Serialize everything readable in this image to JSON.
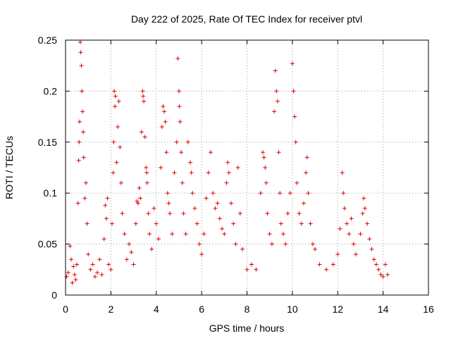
{
  "chart_data": {
    "type": "scatter",
    "title": "Day 222 of 2025, Rate Of TEC Index for receiver ptvl",
    "xlabel": "GPS time / hours",
    "ylabel": "ROTI / TECUs",
    "xlim": [
      0,
      16
    ],
    "ylim": [
      0,
      0.25
    ],
    "x_ticks": [
      0,
      2,
      4,
      6,
      8,
      10,
      12,
      14,
      16
    ],
    "x_tick_labels": [
      "0",
      "2",
      "4",
      "6",
      "8",
      "10",
      "12",
      "14",
      "16"
    ],
    "y_ticks": [
      0,
      0.05,
      0.1,
      0.15,
      0.2,
      0.25
    ],
    "y_tick_labels": [
      "0",
      "0.05",
      "0.1",
      "0.15",
      "0.2",
      "0.25"
    ],
    "grid": true,
    "marker": "+",
    "series": [
      {
        "name": "ROTI",
        "color": "#e00000",
        "points": [
          [
            0.05,
            0.018
          ],
          [
            0.12,
            0.022
          ],
          [
            0.2,
            0.048
          ],
          [
            0.25,
            0.035
          ],
          [
            0.3,
            0.012
          ],
          [
            0.35,
            0.028
          ],
          [
            0.4,
            0.02
          ],
          [
            0.45,
            0.015
          ],
          [
            0.5,
            0.03
          ],
          [
            0.55,
            0.09
          ],
          [
            0.58,
            0.132
          ],
          [
            0.6,
            0.15
          ],
          [
            0.62,
            0.17
          ],
          [
            0.65,
            0.248
          ],
          [
            0.67,
            0.238
          ],
          [
            0.7,
            0.225
          ],
          [
            0.72,
            0.2
          ],
          [
            0.75,
            0.18
          ],
          [
            0.78,
            0.16
          ],
          [
            0.8,
            0.135
          ],
          [
            0.85,
            0.095
          ],
          [
            0.9,
            0.11
          ],
          [
            0.95,
            0.07
          ],
          [
            1.0,
            0.04
          ],
          [
            1.1,
            0.025
          ],
          [
            1.2,
            0.03
          ],
          [
            1.3,
            0.018
          ],
          [
            1.4,
            0.022
          ],
          [
            1.5,
            0.035
          ],
          [
            1.6,
            0.02
          ],
          [
            1.7,
            0.055
          ],
          [
            1.75,
            0.088
          ],
          [
            1.8,
            0.075
          ],
          [
            1.85,
            0.095
          ],
          [
            1.9,
            0.03
          ],
          [
            2.0,
            0.025
          ],
          [
            2.05,
            0.07
          ],
          [
            2.1,
            0.12
          ],
          [
            2.12,
            0.15
          ],
          [
            2.15,
            0.2
          ],
          [
            2.18,
            0.185
          ],
          [
            2.2,
            0.195
          ],
          [
            2.25,
            0.13
          ],
          [
            2.3,
            0.165
          ],
          [
            2.35,
            0.19
          ],
          [
            2.4,
            0.145
          ],
          [
            2.45,
            0.11
          ],
          [
            2.5,
            0.08
          ],
          [
            2.6,
            0.06
          ],
          [
            2.7,
            0.035
          ],
          [
            2.8,
            0.05
          ],
          [
            2.9,
            0.042
          ],
          [
            3.0,
            0.03
          ],
          [
            3.1,
            0.07
          ],
          [
            3.15,
            0.092
          ],
          [
            3.2,
            0.09
          ],
          [
            3.25,
            0.105
          ],
          [
            3.3,
            0.095
          ],
          [
            3.35,
            0.16
          ],
          [
            3.4,
            0.2
          ],
          [
            3.42,
            0.195
          ],
          [
            3.45,
            0.19
          ],
          [
            3.5,
            0.155
          ],
          [
            3.55,
            0.125
          ],
          [
            3.58,
            0.12
          ],
          [
            3.6,
            0.11
          ],
          [
            3.65,
            0.08
          ],
          [
            3.7,
            0.06
          ],
          [
            3.8,
            0.045
          ],
          [
            3.9,
            0.085
          ],
          [
            4.0,
            0.07
          ],
          [
            4.1,
            0.055
          ],
          [
            4.2,
            0.125
          ],
          [
            4.25,
            0.165
          ],
          [
            4.3,
            0.185
          ],
          [
            4.35,
            0.18
          ],
          [
            4.4,
            0.17
          ],
          [
            4.45,
            0.14
          ],
          [
            4.5,
            0.1
          ],
          [
            4.55,
            0.09
          ],
          [
            4.6,
            0.08
          ],
          [
            4.7,
            0.06
          ],
          [
            4.8,
            0.12
          ],
          [
            4.9,
            0.15
          ],
          [
            4.95,
            0.232
          ],
          [
            5.0,
            0.2
          ],
          [
            5.02,
            0.185
          ],
          [
            5.05,
            0.17
          ],
          [
            5.1,
            0.14
          ],
          [
            5.15,
            0.11
          ],
          [
            5.2,
            0.08
          ],
          [
            5.3,
            0.06
          ],
          [
            5.4,
            0.15
          ],
          [
            5.5,
            0.13
          ],
          [
            5.55,
            0.12
          ],
          [
            5.6,
            0.1
          ],
          [
            5.7,
            0.085
          ],
          [
            5.8,
            0.07
          ],
          [
            5.9,
            0.05
          ],
          [
            6.0,
            0.04
          ],
          [
            6.1,
            0.06
          ],
          [
            6.2,
            0.095
          ],
          [
            6.3,
            0.12
          ],
          [
            6.4,
            0.14
          ],
          [
            6.5,
            0.1
          ],
          [
            6.6,
            0.085
          ],
          [
            6.7,
            0.09
          ],
          [
            6.8,
            0.075
          ],
          [
            6.9,
            0.065
          ],
          [
            7.0,
            0.06
          ],
          [
            7.1,
            0.11
          ],
          [
            7.15,
            0.13
          ],
          [
            7.2,
            0.12
          ],
          [
            7.3,
            0.09
          ],
          [
            7.4,
            0.07
          ],
          [
            7.5,
            0.05
          ],
          [
            7.6,
            0.125
          ],
          [
            7.7,
            0.08
          ],
          [
            7.8,
            0.045
          ],
          [
            8.0,
            0.025
          ],
          [
            8.2,
            0.03
          ],
          [
            8.4,
            0.025
          ],
          [
            8.6,
            0.1
          ],
          [
            8.7,
            0.14
          ],
          [
            8.75,
            0.135
          ],
          [
            8.8,
            0.125
          ],
          [
            8.85,
            0.11
          ],
          [
            8.9,
            0.08
          ],
          [
            9.0,
            0.06
          ],
          [
            9.1,
            0.05
          ],
          [
            9.2,
            0.18
          ],
          [
            9.25,
            0.22
          ],
          [
            9.3,
            0.2
          ],
          [
            9.35,
            0.19
          ],
          [
            9.4,
            0.14
          ],
          [
            9.45,
            0.1
          ],
          [
            9.5,
            0.07
          ],
          [
            9.6,
            0.06
          ],
          [
            9.7,
            0.05
          ],
          [
            9.8,
            0.08
          ],
          [
            9.9,
            0.1
          ],
          [
            10.0,
            0.227
          ],
          [
            10.05,
            0.2
          ],
          [
            10.1,
            0.175
          ],
          [
            10.15,
            0.15
          ],
          [
            10.2,
            0.11
          ],
          [
            10.3,
            0.08
          ],
          [
            10.4,
            0.07
          ],
          [
            10.5,
            0.09
          ],
          [
            10.6,
            0.12
          ],
          [
            10.65,
            0.135
          ],
          [
            10.7,
            0.1
          ],
          [
            10.8,
            0.07
          ],
          [
            10.9,
            0.05
          ],
          [
            11.0,
            0.045
          ],
          [
            11.2,
            0.03
          ],
          [
            11.5,
            0.025
          ],
          [
            11.8,
            0.03
          ],
          [
            12.0,
            0.04
          ],
          [
            12.1,
            0.065
          ],
          [
            12.2,
            0.12
          ],
          [
            12.25,
            0.1
          ],
          [
            12.3,
            0.085
          ],
          [
            12.4,
            0.07
          ],
          [
            12.5,
            0.06
          ],
          [
            12.6,
            0.075
          ],
          [
            12.7,
            0.05
          ],
          [
            12.8,
            0.04
          ],
          [
            13.0,
            0.06
          ],
          [
            13.1,
            0.08
          ],
          [
            13.15,
            0.095
          ],
          [
            13.2,
            0.085
          ],
          [
            13.3,
            0.07
          ],
          [
            13.4,
            0.055
          ],
          [
            13.5,
            0.045
          ],
          [
            13.6,
            0.035
          ],
          [
            13.7,
            0.03
          ],
          [
            13.8,
            0.025
          ],
          [
            13.9,
            0.02
          ],
          [
            14.0,
            0.018
          ],
          [
            14.1,
            0.03
          ],
          [
            14.2,
            0.02
          ]
        ]
      }
    ]
  }
}
